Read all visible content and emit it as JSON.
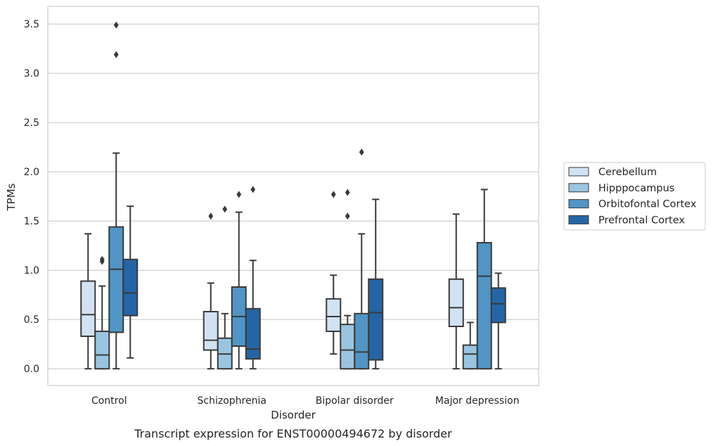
{
  "caption": "Transcript expression for ENST00000494672 by disorder",
  "chart_data": {
    "type": "box",
    "xlabel": "Disorder",
    "ylabel": "TPMs",
    "ylim": [
      -0.17,
      3.68
    ],
    "yticks": [
      "0.0",
      "0.5",
      "1.0",
      "1.5",
      "2.0",
      "2.5",
      "3.0",
      "3.5"
    ],
    "grid": "horizontal",
    "legend_position": "right",
    "categories": [
      "Control",
      "Schizophrenia",
      "Bipolar disorder",
      "Major depression"
    ],
    "series": [
      {
        "name": "Cerebellum",
        "color": "#d1e2f2",
        "boxes": [
          {
            "whislo": 0.0,
            "q1": 0.33,
            "med": 0.55,
            "q3": 0.89,
            "whishi": 1.37,
            "fliers": []
          },
          {
            "whislo": 0.0,
            "q1": 0.19,
            "med": 0.29,
            "q3": 0.58,
            "whishi": 0.87,
            "fliers": [
              1.55
            ]
          },
          {
            "whislo": 0.15,
            "q1": 0.38,
            "med": 0.53,
            "q3": 0.71,
            "whishi": 0.95,
            "fliers": [
              1.77
            ]
          },
          {
            "whislo": 0.0,
            "q1": 0.43,
            "med": 0.62,
            "q3": 0.91,
            "whishi": 1.57,
            "fliers": []
          }
        ]
      },
      {
        "name": "Hipppocampus",
        "color": "#9ac5e0",
        "boxes": [
          {
            "whislo": 0.0,
            "q1": 0.0,
            "med": 0.14,
            "q3": 0.38,
            "whishi": 0.84,
            "fliers": [
              1.09,
              1.11
            ]
          },
          {
            "whislo": 0.0,
            "q1": 0.0,
            "med": 0.15,
            "q3": 0.31,
            "whishi": 0.56,
            "fliers": [
              1.62
            ]
          },
          {
            "whislo": 0.0,
            "q1": 0.0,
            "med": 0.19,
            "q3": 0.45,
            "whishi": 0.54,
            "fliers": [
              1.55,
              1.79
            ]
          },
          {
            "whislo": 0.0,
            "q1": 0.0,
            "med": 0.15,
            "q3": 0.24,
            "whishi": 0.47,
            "fliers": []
          }
        ]
      },
      {
        "name": "Orbitofontal Cortex",
        "color": "#5095c6",
        "boxes": [
          {
            "whislo": 0.0,
            "q1": 0.37,
            "med": 1.01,
            "q3": 1.44,
            "whishi": 2.19,
            "fliers": [
              3.19,
              3.49
            ]
          },
          {
            "whislo": 0.0,
            "q1": 0.23,
            "med": 0.53,
            "q3": 0.83,
            "whishi": 1.59,
            "fliers": [
              1.77
            ]
          },
          {
            "whislo": 0.0,
            "q1": 0.0,
            "med": 0.17,
            "q3": 0.56,
            "whishi": 1.37,
            "fliers": [
              2.2
            ]
          },
          {
            "whislo": 0.0,
            "q1": 0.0,
            "med": 0.94,
            "q3": 1.28,
            "whishi": 1.82,
            "fliers": []
          }
        ]
      },
      {
        "name": "Prefrontal Cortex",
        "color": "#2565a5",
        "boxes": [
          {
            "whislo": 0.11,
            "q1": 0.54,
            "med": 0.77,
            "q3": 1.11,
            "whishi": 1.65,
            "fliers": []
          },
          {
            "whislo": 0.0,
            "q1": 0.1,
            "med": 0.2,
            "q3": 0.61,
            "whishi": 1.1,
            "fliers": [
              1.82
            ]
          },
          {
            "whislo": 0.0,
            "q1": 0.09,
            "med": 0.57,
            "q3": 0.91,
            "whishi": 1.72,
            "fliers": []
          },
          {
            "whislo": 0.0,
            "q1": 0.47,
            "med": 0.66,
            "q3": 0.82,
            "whishi": 0.97,
            "fliers": []
          }
        ]
      }
    ]
  }
}
